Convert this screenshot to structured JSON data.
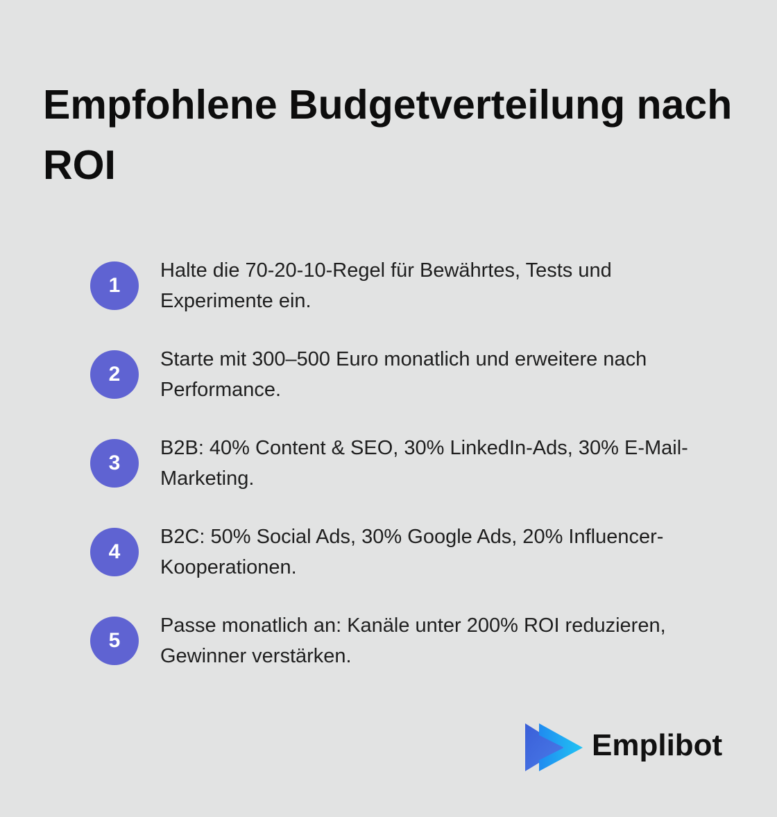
{
  "header": {
    "title": "Empfohlene Budgetverteilung nach ROI"
  },
  "items": [
    {
      "number": "1",
      "text": "Halte die 70-20-10-Regel für Bewährtes, Tests und Experimente ein."
    },
    {
      "number": "2",
      "text": "Starte mit 300–500 Euro monatlich und erweitere nach Performance."
    },
    {
      "number": "3",
      "text": "B2B: 40% Content & SEO, 30% LinkedIn-Ads, 30% E-Mail-Marketing."
    },
    {
      "number": "4",
      "text": "B2C: 50% Social Ads, 30% Google Ads, 20% Influencer-Kooperationen."
    },
    {
      "number": "5",
      "text": "Passe monatlich an: Kanäle unter 200% ROI reduzieren, Gewinner verstärken."
    }
  ],
  "logo": {
    "text": "Emplibot"
  }
}
